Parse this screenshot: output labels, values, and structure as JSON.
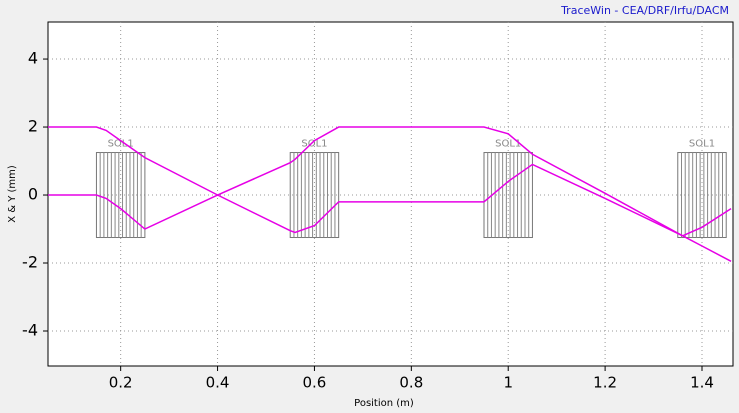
{
  "chart_data": {
    "type": "line",
    "title": "TraceWin - CEA/DRF/Irfu/DACM",
    "x_label": "Position (m)",
    "y_label": "X & Y (mm)",
    "x": [
      0.05,
      0.15,
      0.17,
      0.2,
      0.25,
      0.4,
      0.55,
      0.56,
      0.6,
      0.65,
      0.8,
      0.95,
      1.0,
      1.05,
      1.2,
      1.36,
      1.4,
      1.46
    ],
    "series": [
      {
        "color": "#e600e6",
        "values": [
          2,
          2,
          1.9,
          1.6,
          1.1,
          0,
          -1.05,
          -1.1,
          -0.9,
          -0.2,
          -0.2,
          -0.2,
          0.4,
          0.9,
          -0.1,
          -1.2,
          -0.95,
          -0.4
        ]
      },
      {
        "color": "#e600e6",
        "values": [
          0,
          0,
          -0.1,
          -0.4,
          -1,
          0,
          0.95,
          1.05,
          1.6,
          2,
          2,
          2,
          1.8,
          1.2,
          0.05,
          -1.2,
          -1.5,
          -1.95
        ]
      }
    ],
    "elements": [
      {
        "label": "SOL1",
        "x0": 0.15,
        "x1": 0.25,
        "y0": -1.25,
        "y1": 1.25
      },
      {
        "label": "SOL1",
        "x0": 0.55,
        "x1": 0.65,
        "y0": -1.25,
        "y1": 1.25
      },
      {
        "label": "SOL1",
        "x0": 0.95,
        "x1": 1.05,
        "y0": -1.25,
        "y1": 1.25
      },
      {
        "label": "SOL1",
        "x0": 1.35,
        "x1": 1.45,
        "y0": -1.25,
        "y1": 1.25
      }
    ],
    "xlim": [
      0.05,
      1.464
    ],
    "ylim": [
      -5.03,
      5.09
    ],
    "xticks": [
      0.2,
      0.4,
      0.6,
      0.8,
      1,
      1.2,
      1.4
    ],
    "yticks": [
      -4,
      -2,
      0,
      2,
      4
    ],
    "grid": true
  }
}
